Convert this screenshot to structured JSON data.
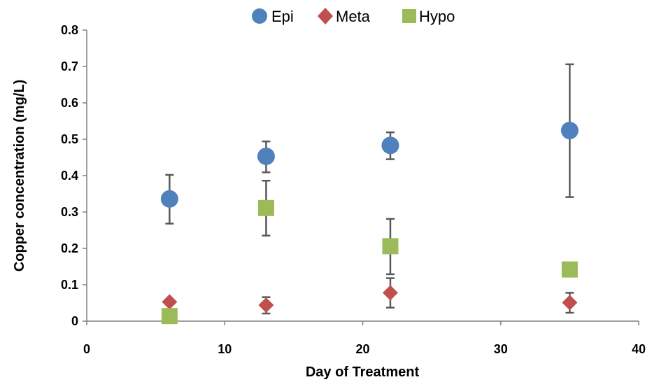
{
  "chart_data": {
    "type": "scatter",
    "xlabel": "Day of Treatment",
    "ylabel": "Copper concentration (mg/L)",
    "xlim": [
      0,
      40
    ],
    "ylim": [
      0,
      0.8
    ],
    "xticks": [
      0,
      10,
      20,
      30,
      40
    ],
    "yticks": [
      0,
      0.1,
      0.2,
      0.3,
      0.4,
      0.5,
      0.6,
      0.7,
      0.8
    ],
    "xtick_labels": [
      "0",
      "10",
      "20",
      "30",
      "40"
    ],
    "ytick_labels": [
      "0",
      "0.1",
      "0.2",
      "0.3",
      "0.4",
      "0.5",
      "0.6",
      "0.7",
      "0.8"
    ],
    "grid": false,
    "legend_position": "top",
    "series": [
      {
        "name": "Epi",
        "marker": "circle",
        "color": "#4F81BD",
        "x": [
          6,
          13,
          22,
          35
        ],
        "y": [
          0.336,
          0.453,
          0.483,
          0.524
        ],
        "err_low": [
          0.268,
          0.409,
          0.445,
          0.341
        ],
        "err_high": [
          0.402,
          0.494,
          0.519,
          0.706
        ]
      },
      {
        "name": "Meta",
        "marker": "diamond",
        "color": "#C0504D",
        "x": [
          6,
          13,
          22,
          35
        ],
        "y": [
          0.053,
          0.044,
          0.078,
          0.051
        ],
        "err_low": [
          0.053,
          0.021,
          0.037,
          0.023
        ],
        "err_high": [
          0.053,
          0.066,
          0.118,
          0.078
        ]
      },
      {
        "name": "Hypo",
        "marker": "square",
        "color": "#9BBB59",
        "x": [
          6,
          13,
          22,
          35
        ],
        "y": [
          0.014,
          0.311,
          0.206,
          0.142
        ],
        "err_low": [
          0.014,
          0.235,
          0.129,
          0.142
        ],
        "err_high": [
          0.014,
          0.386,
          0.281,
          0.142
        ]
      }
    ]
  }
}
